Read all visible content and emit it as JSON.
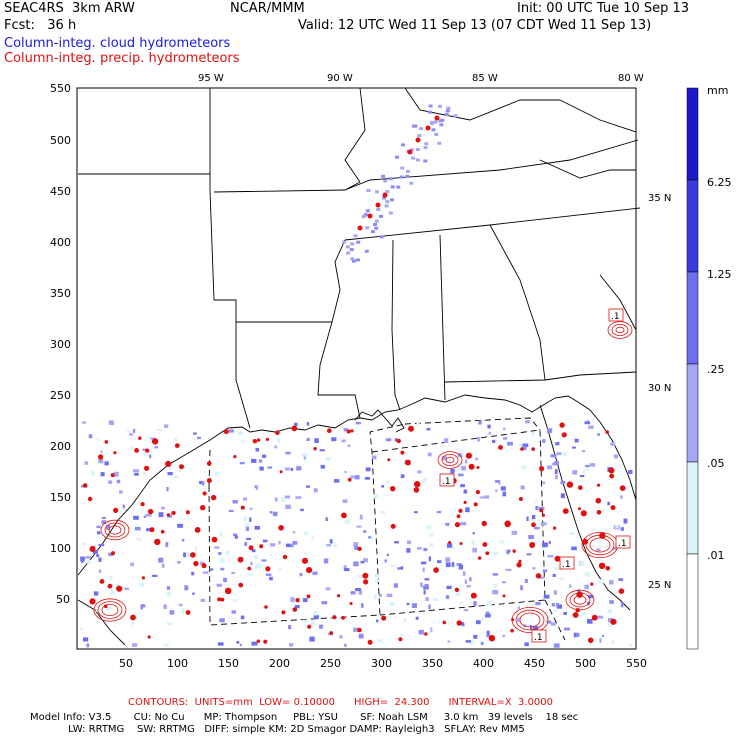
{
  "header": {
    "model": "SEAC4RS  3km ARW",
    "org": "NCAR/MMM",
    "init": "Init: 00 UTC Tue 10 Sep 13",
    "fcst": "Fcst:   36 h",
    "valid": "Valid: 12 UTC Wed 11 Sep 13 (07 CDT Wed 11 Sep 13)",
    "field_blue": "Column-integ. cloud hydrometeors",
    "field_red": "Column-integ. precip. hydrometeors"
  },
  "map": {
    "lon_labels": [
      "95 W",
      "90 W",
      "85 W",
      "80 W"
    ],
    "lat_labels": [
      "35 N",
      "30 N",
      "25 N"
    ],
    "x_ticks": [
      "50",
      "100",
      "150",
      "200",
      "250",
      "300",
      "350",
      "400",
      "450",
      "500",
      "550"
    ],
    "y_ticks": [
      "550",
      "500",
      "450",
      "400",
      "350",
      "300",
      "250",
      "200",
      "150",
      "100",
      "50"
    ],
    "contour_labels": [
      ".1",
      ".1",
      ".1",
      ".1",
      ".1"
    ]
  },
  "colorbar": {
    "unit": "mm",
    "labels": [
      "6.25",
      "1.25",
      ".25",
      ".05",
      ".01"
    ],
    "colors": [
      "#1a1acc",
      "#3a3ae0",
      "#6e6ef0",
      "#a6a6f6",
      "#d8f4fa",
      "#ffffff"
    ]
  },
  "footer": {
    "contours_line": "CONTOURS:  UNITS=mm  LOW= 0.10000      HIGH=  24.300      INTERVAL=X  3.0000",
    "model_info_1": "Model Info: V3.5       CU: No Cu      MP: Thompson     PBL: YSU       SF: Noah LSM     3.0 km   39 levels    18 sec",
    "model_info_2": "            LW: RRTMG    SW: RRTMG   DIFF: simple KM: 2D Smagor DAMP: Rayleigh3   SFLAY: Rev MM5"
  }
}
